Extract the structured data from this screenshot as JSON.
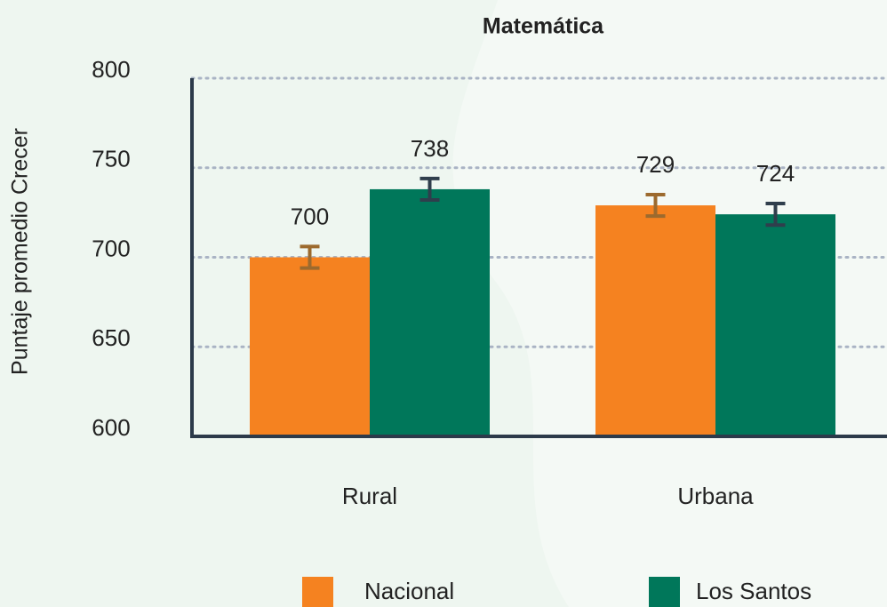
{
  "chart_data": {
    "type": "bar",
    "title": "Matemática",
    "y_label": "Puntaje promedio Crecer",
    "categories": [
      "Rural",
      "Urbana"
    ],
    "series": [
      {
        "name": "Nacional",
        "color": "#f58220",
        "error_color": "#9c6a2e",
        "values": [
          700,
          729
        ],
        "errors": [
          6,
          6
        ]
      },
      {
        "name": "Los Santos",
        "color": "#00775a",
        "error_color": "#2f3e4c",
        "values": [
          738,
          724
        ],
        "errors": [
          6,
          6
        ]
      }
    ],
    "ylim": [
      600,
      800
    ],
    "yticks": [
      600,
      650,
      700,
      750,
      800
    ],
    "grid": true
  }
}
